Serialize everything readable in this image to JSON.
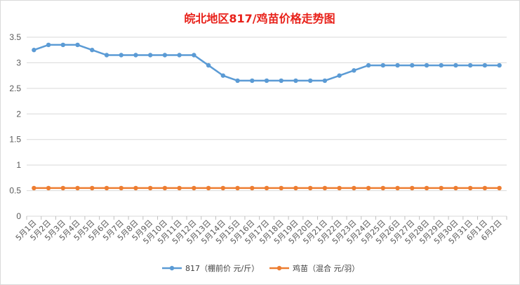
{
  "chart_data": {
    "type": "line",
    "title": "皖北地区817/鸡苗价格走势图",
    "xlabel": "",
    "ylabel": "",
    "ylim": [
      0,
      3.5
    ],
    "yticks": [
      "0",
      "0.5",
      "1",
      "1.5",
      "2",
      "2.5",
      "3",
      "3.5"
    ],
    "grid": true,
    "legend_position": "bottom",
    "categories": [
      "5月1日",
      "5月2日",
      "5月3日",
      "5月4日",
      "5月5日",
      "5月6日",
      "5月7日",
      "5月8日",
      "5月9日",
      "5月10日",
      "5月11日",
      "5月12日",
      "5月13日",
      "5月14日",
      "5月15日",
      "5月16日",
      "5月17日",
      "5月18日",
      "5月19日",
      "5月20日",
      "5月21日",
      "5月22日",
      "5月23日",
      "5月24日",
      "5月25日",
      "5月26日",
      "5月27日",
      "5月28日",
      "5月29日",
      "5月30日",
      "5月31日",
      "6月1日",
      "6月2日"
    ],
    "series": [
      {
        "name": "817（棚前价 元/斤）",
        "color": "#5b9bd5",
        "values": [
          3.25,
          3.35,
          3.35,
          3.35,
          3.25,
          3.15,
          3.15,
          3.15,
          3.15,
          3.15,
          3.15,
          3.15,
          2.95,
          2.75,
          2.65,
          2.65,
          2.65,
          2.65,
          2.65,
          2.65,
          2.65,
          2.75,
          2.85,
          2.95,
          2.95,
          2.95,
          2.95,
          2.95,
          2.95,
          2.95,
          2.95,
          2.95,
          2.95
        ]
      },
      {
        "name": "鸡苗（混合 元/羽）",
        "color": "#ed7d31",
        "values": [
          0.55,
          0.55,
          0.55,
          0.55,
          0.55,
          0.55,
          0.55,
          0.55,
          0.55,
          0.55,
          0.55,
          0.55,
          0.55,
          0.55,
          0.55,
          0.55,
          0.55,
          0.55,
          0.55,
          0.55,
          0.55,
          0.55,
          0.55,
          0.55,
          0.55,
          0.55,
          0.55,
          0.55,
          0.55,
          0.55,
          0.55,
          0.55,
          0.55
        ]
      }
    ]
  }
}
